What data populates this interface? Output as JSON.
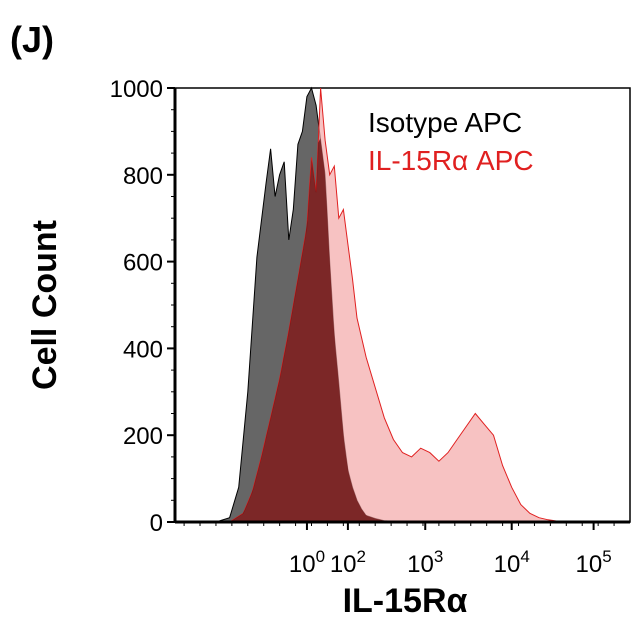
{
  "panel_label": "(J)",
  "chart_data": {
    "type": "area",
    "title": "",
    "xlabel": "IL-15Rα",
    "ylabel": "Cell Count",
    "ylim": [
      0,
      1000
    ],
    "yticks": [
      0,
      200,
      400,
      600,
      800,
      1000
    ],
    "xtick_labels": [
      {
        "base": "10",
        "exp": "0"
      },
      {
        "base": "10",
        "exp": "2"
      },
      {
        "base": "10",
        "exp": "3"
      },
      {
        "base": "10",
        "exp": "4"
      },
      {
        "base": "10",
        "exp": "5"
      }
    ],
    "xtick_positions": [
      0.29,
      0.38,
      0.55,
      0.74,
      0.92
    ],
    "grid": false,
    "legend": "top-right",
    "series": [
      {
        "name": "Isotype APC",
        "color": "#000000",
        "fill": "#555555",
        "x": [
          0.09,
          0.12,
          0.14,
          0.16,
          0.18,
          0.2,
          0.21,
          0.22,
          0.23,
          0.24,
          0.25,
          0.26,
          0.27,
          0.28,
          0.29,
          0.3,
          0.31,
          0.32,
          0.33,
          0.34,
          0.35,
          0.36,
          0.37,
          0.38,
          0.39,
          0.4,
          0.41,
          0.42,
          0.44,
          0.46,
          0.5
        ],
        "y": [
          0,
          10,
          80,
          300,
          610,
          780,
          860,
          750,
          800,
          830,
          650,
          720,
          870,
          900,
          980,
          1000,
          960,
          880,
          800,
          600,
          430,
          320,
          200,
          120,
          80,
          50,
          30,
          15,
          8,
          3,
          0
        ]
      },
      {
        "name": "IL-15Rα APC",
        "color": "#e02020",
        "fill": "#f4a8a8",
        "x": [
          0.12,
          0.15,
          0.17,
          0.19,
          0.21,
          0.23,
          0.25,
          0.27,
          0.29,
          0.3,
          0.31,
          0.32,
          0.33,
          0.34,
          0.35,
          0.36,
          0.37,
          0.38,
          0.39,
          0.4,
          0.42,
          0.44,
          0.46,
          0.48,
          0.5,
          0.52,
          0.54,
          0.56,
          0.58,
          0.6,
          0.62,
          0.64,
          0.66,
          0.68,
          0.7,
          0.72,
          0.74,
          0.76,
          0.78,
          0.8,
          0.82,
          0.84,
          0.88
        ],
        "y": [
          0,
          20,
          70,
          150,
          240,
          330,
          440,
          560,
          680,
          840,
          760,
          1000,
          880,
          800,
          820,
          700,
          720,
          640,
          560,
          470,
          380,
          310,
          240,
          190,
          160,
          150,
          170,
          160,
          140,
          160,
          190,
          220,
          250,
          225,
          200,
          130,
          80,
          40,
          20,
          10,
          5,
          2,
          0
        ]
      }
    ]
  }
}
